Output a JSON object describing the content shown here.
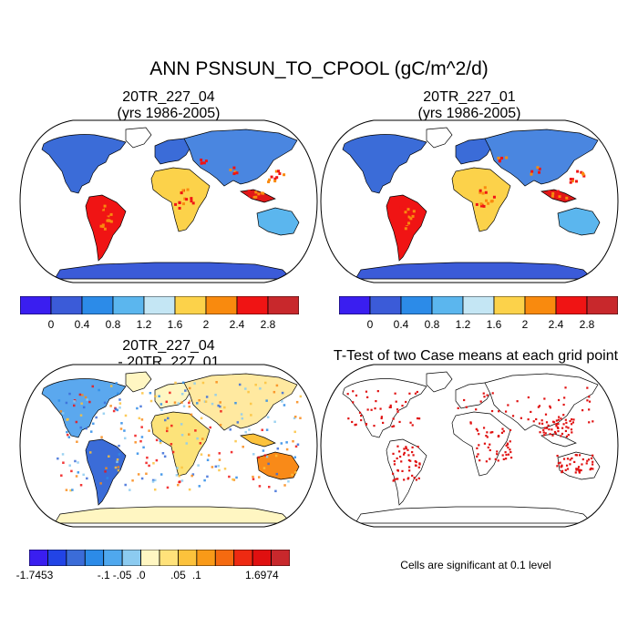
{
  "title": "ANN PSNSUN_TO_CPOOL (gC/m^2/d)",
  "panels": [
    {
      "id": "case1",
      "title_line1": "20TR_227_04",
      "title_line2": "(yrs 1986-2005)",
      "colorbar": {
        "colors": [
          "#3A1EF0",
          "#3B5BD8",
          "#2C8BE8",
          "#5BB6EE",
          "#C4E6F4",
          "#FCD24A",
          "#F98A0E",
          "#F01414",
          "#C8282C"
        ],
        "labels": [
          "0",
          "0.4",
          "0.8",
          "1.2",
          "1.6",
          "2",
          "2.4",
          "2.8"
        ]
      }
    },
    {
      "id": "case2",
      "title_line1": "20TR_227_01",
      "title_line2": "(yrs 1986-2005)",
      "colorbar": {
        "colors": [
          "#3A1EF0",
          "#3B5BD8",
          "#2C8BE8",
          "#5BB6EE",
          "#C4E6F4",
          "#FCD24A",
          "#F98A0E",
          "#F01414",
          "#C8282C"
        ],
        "labels": [
          "0",
          "0.4",
          "0.8",
          "1.2",
          "1.6",
          "2",
          "2.4",
          "2.8"
        ]
      }
    },
    {
      "id": "diff",
      "title_line1": "20TR_227_04",
      "title_line2": "- 20TR_227_01",
      "colorbar": {
        "colors": [
          "#3A1EF0",
          "#2244E6",
          "#3B6CD8",
          "#2C8BE8",
          "#4FA8EE",
          "#8CCBF0",
          "#FFF6C2",
          "#FFE27A",
          "#FCC23C",
          "#F99A18",
          "#F56A10",
          "#EE2A12",
          "#E01010",
          "#C8282C"
        ],
        "labels": [
          "-1.7453",
          "-.1",
          "-.05",
          ".0",
          ".05",
          ".1",
          "1.6974"
        ]
      }
    },
    {
      "id": "ttest",
      "title_line1": "T-Test of two Case means at each grid point",
      "title_line2": ""
    }
  ],
  "footnote": "Cells are significant at 0.1 level",
  "colors": {
    "significant": "#E01010",
    "land_outline": "#000000"
  }
}
